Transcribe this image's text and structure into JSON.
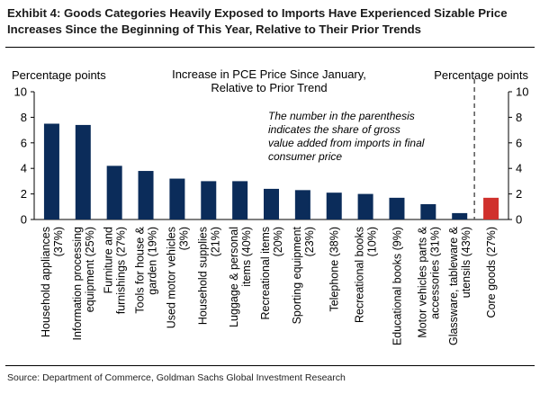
{
  "exhibit_title": "Exhibit 4: Goods Categories Heavily Exposed to Imports Have Experienced Sizable Price Increases Since the Beginning of This Year, Relative to Their Prior Trends",
  "source": "Source: Department of Commerce, Goldman Sachs Global Investment Research",
  "colors": {
    "bar_main": "#0b2c5a",
    "bar_highlight": "#d0312d",
    "divider": "#555555"
  },
  "chart_data": {
    "type": "bar",
    "title_lines": [
      "Increase in PCE Price Since January,",
      "Relative to Prior Trend"
    ],
    "ylabel_left": "Percentage points",
    "ylabel_right": "Percentage points",
    "ylim": [
      0,
      10
    ],
    "yticks": [
      0,
      2,
      4,
      6,
      8,
      10
    ],
    "annotation_lines": [
      "The number in the parenthesis",
      "indicates the share of gross",
      "value added from imports in final",
      "consumer price"
    ],
    "categories": [
      [
        "Household appliances",
        "(37%)"
      ],
      [
        "Information processing",
        "equipment (25%)"
      ],
      [
        "Furniture and",
        "furnishings (27%)"
      ],
      [
        "Tools for house &",
        "garden (19%)"
      ],
      [
        "Used motor vehicles",
        "(3%)"
      ],
      [
        "Household supplies",
        "(21%)"
      ],
      [
        "Luggage & personal",
        "items (40%)"
      ],
      [
        "Recreational items",
        "(20%)"
      ],
      [
        "Sporting equipment",
        "(23%)"
      ],
      [
        "Telephone (38%)"
      ],
      [
        "Recreational books",
        "(10%)"
      ],
      [
        "Educational books (9%)"
      ],
      [
        "Motor vehicles parts &",
        "accessories (31%)"
      ],
      [
        "Glassware, tableware &",
        "utensils (43%)"
      ],
      [
        "Core goods (27%)"
      ]
    ],
    "values": [
      7.5,
      7.4,
      4.2,
      3.8,
      3.2,
      3.0,
      3.0,
      2.4,
      2.3,
      2.1,
      2.0,
      1.7,
      1.2,
      0.5,
      1.7
    ],
    "highlight_index": 14
  }
}
